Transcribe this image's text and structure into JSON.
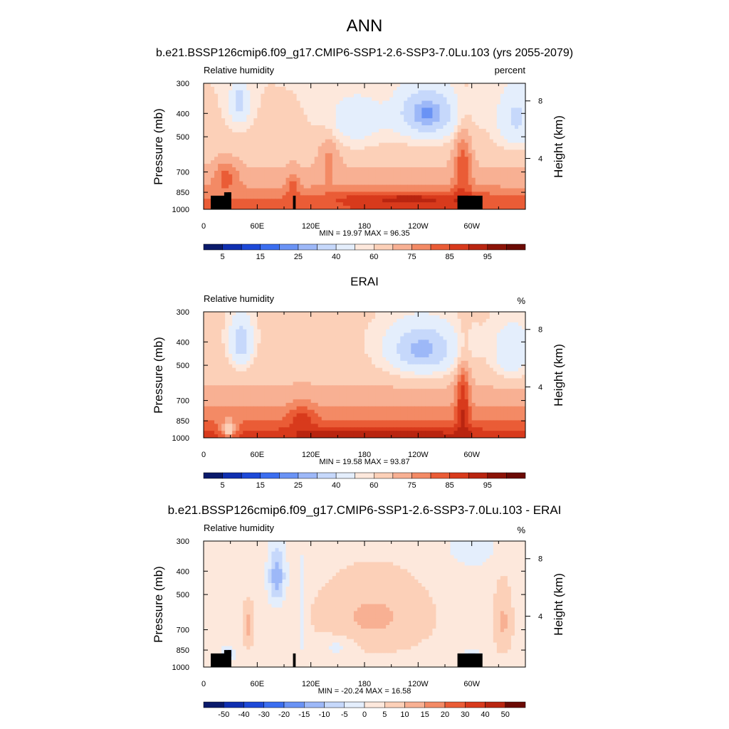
{
  "figure": {
    "title": "ANN",
    "subtitle": "b.e21.BSSP126cmip6.f09_g17.CMIP6-SSP1-2.6-SSP3-7.0Lu.103 (yrs 2055-2079)"
  },
  "colors": {
    "seq_palette": [
      "#0a1a6b",
      "#0f2fb0",
      "#1d49d8",
      "#3b6ef0",
      "#6a93f5",
      "#9db8f8",
      "#c6d8fb",
      "#e4eefc",
      "#fde8dc",
      "#fcd0b8",
      "#f8b093",
      "#f38a65",
      "#ea5c36",
      "#d83a1c",
      "#b92510",
      "#8c1307",
      "#6b0a04"
    ],
    "diff_palette": [
      "#0a1a6b",
      "#0f2fb0",
      "#1d49d8",
      "#3b6ef0",
      "#6a93f5",
      "#9db8f8",
      "#c6d8fb",
      "#e4eefc",
      "#fde8dc",
      "#fcd0b8",
      "#f8b093",
      "#f38a65",
      "#ea5c36",
      "#d83a1c",
      "#b92510",
      "#6b0a04"
    ]
  },
  "chart_data": [
    {
      "type": "heatmap",
      "title": "",
      "left_label": "Relative humidity",
      "right_label": "percent",
      "xlabel": "",
      "ylabel": "Pressure (mb)",
      "y2label": "Height (km)",
      "x_ticklabels": [
        "0",
        "60E",
        "120E",
        "180",
        "120W",
        "60W"
      ],
      "y_ticklabels": [
        "300",
        "400",
        "500",
        "700",
        "850",
        "1000"
      ],
      "y_ticks": [
        300,
        400,
        500,
        700,
        850,
        1000
      ],
      "y2_ticklabels": [
        "8",
        "4"
      ],
      "xlim": [
        0,
        360
      ],
      "ylim": [
        1000,
        300
      ],
      "y_scale": "log",
      "stats": "MIN =  19.97  MAX =  96.35",
      "min": 19.97,
      "max": 96.35,
      "colorbar_levels": [
        5,
        10,
        15,
        20,
        25,
        30,
        40,
        50,
        55,
        60,
        65,
        70,
        75,
        80,
        85,
        90
      ],
      "colorbar_labels": [
        "5",
        "15",
        "25",
        "40",
        "60",
        "75",
        "85",
        "95"
      ],
      "terrain": true
    },
    {
      "type": "heatmap",
      "title": "ERAI",
      "left_label": "Relative humidity",
      "right_label": "%",
      "xlabel": "",
      "ylabel": "Pressure (mb)",
      "y2label": "Height (km)",
      "x_ticklabels": [
        "0",
        "60E",
        "120E",
        "180",
        "120W",
        "60W"
      ],
      "y_ticklabels": [
        "300",
        "400",
        "500",
        "700",
        "850",
        "1000"
      ],
      "y_ticks": [
        300,
        400,
        500,
        700,
        850,
        1000
      ],
      "y2_ticklabels": [
        "8",
        "4"
      ],
      "xlim": [
        0,
        360
      ],
      "ylim": [
        1000,
        300
      ],
      "y_scale": "log",
      "stats": "MIN =  19.58  MAX =  93.87",
      "min": 19.58,
      "max": 93.87,
      "colorbar_levels": [
        5,
        10,
        15,
        20,
        25,
        30,
        40,
        50,
        55,
        60,
        65,
        70,
        75,
        80,
        85,
        90
      ],
      "colorbar_labels": [
        "5",
        "15",
        "25",
        "40",
        "60",
        "75",
        "85",
        "95"
      ],
      "terrain": false
    },
    {
      "type": "heatmap",
      "title": "b.e21.BSSP126cmip6.f09_g17.CMIP6-SSP1-2.6-SSP3-7.0Lu.103 - ERAI",
      "left_label": "Relative humidity",
      "right_label": "%",
      "xlabel": "",
      "ylabel": "Pressure (mb)",
      "y2label": "Height (km)",
      "x_ticklabels": [
        "0",
        "60E",
        "120E",
        "180",
        "120W",
        "60W"
      ],
      "y_ticklabels": [
        "300",
        "400",
        "500",
        "700",
        "850",
        "1000"
      ],
      "y_ticks": [
        300,
        400,
        500,
        700,
        850,
        1000
      ],
      "y2_ticklabels": [
        "8",
        "4"
      ],
      "xlim": [
        0,
        360
      ],
      "ylim": [
        1000,
        300
      ],
      "y_scale": "log",
      "stats": "MIN = -20.24  MAX =  16.58",
      "min": -20.24,
      "max": 16.58,
      "colorbar_levels": [
        -50,
        -40,
        -30,
        -20,
        -15,
        -10,
        -5,
        0,
        5,
        10,
        15,
        20,
        30,
        40,
        50
      ],
      "colorbar_labels": [
        "-50",
        "-40",
        "-30",
        "-20",
        "-15",
        "-10",
        "-5",
        "0",
        "5",
        "10",
        "15",
        "20",
        "30",
        "40",
        "50"
      ],
      "terrain": true
    }
  ]
}
